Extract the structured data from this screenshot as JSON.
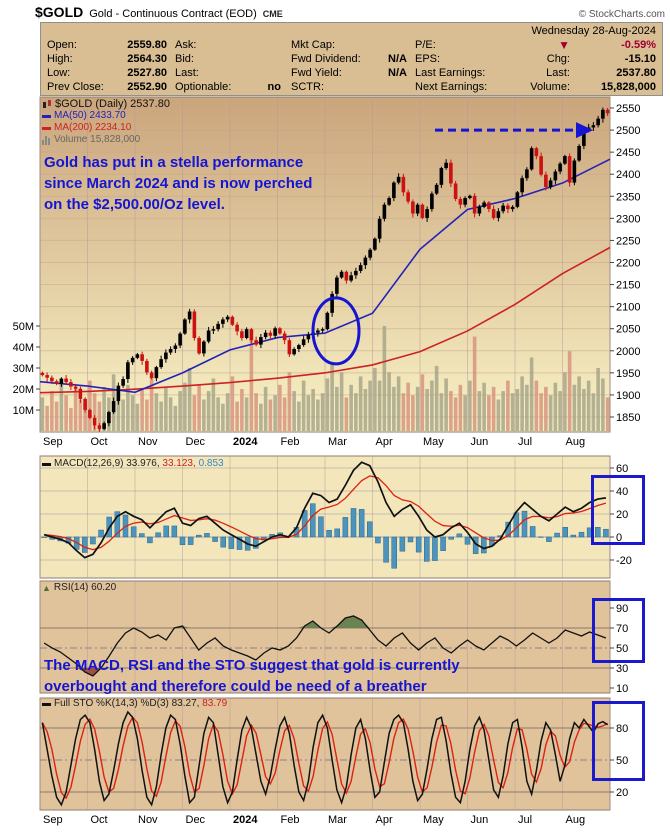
{
  "titlebar": {
    "symbol": "$GOLD",
    "name": "Gold - Continuous Contract (EOD)",
    "exchange": "CME",
    "copyright": "© StockCharts.com"
  },
  "quote": {
    "date": "Wednesday 28-Aug-2024",
    "rows": [
      {
        "c1l": "Open:",
        "c1v": "2559.80",
        "c2l": "Ask:",
        "c2v": "",
        "c3l": "Mkt Cap:",
        "c3v": "",
        "c4l": "P/E:",
        "c4v": "",
        "rl": "",
        "rv": "-0.59%",
        "neg": true,
        "triangle": true
      },
      {
        "c1l": "High:",
        "c1v": "2564.30",
        "c2l": "Bid:",
        "c2v": "",
        "c3l": "Fwd Dividend:",
        "c3v": "N/A",
        "c4l": "EPS:",
        "c4v": "",
        "rl": "Chg:",
        "rv": "-15.10"
      },
      {
        "c1l": "Low:",
        "c1v": "2527.80",
        "c2l": "Last:",
        "c2v": "",
        "c3l": "Fwd Yield:",
        "c3v": "N/A",
        "c4l": "Last Earnings:",
        "c4v": "",
        "rl": "Last:",
        "rv": "2537.80"
      },
      {
        "c1l": "Prev Close:",
        "c1v": "2552.90",
        "c2l": "Optionable:",
        "c2v": "no",
        "c3l": "SCTR:",
        "c3v": "",
        "c4l": "Next Earnings:",
        "c4v": "",
        "rl": "Volume:",
        "rv": "15,828,000"
      }
    ]
  },
  "legend_main": {
    "line1": "$GOLD (Daily) 2537.80",
    "ma50": "MA(50) 2433.70",
    "ma200": "MA(200) 2234.10",
    "volume": "Volume 15,828,000"
  },
  "legend_macd": {
    "name": "MACD(12,26,9)",
    "v1": "33.976,",
    "v2": "33.123,",
    "v3": "0.853"
  },
  "legend_rsi": {
    "text": "RSI(14) 60.20"
  },
  "legend_sto": {
    "name": "Full STO %K(14,3) %D(3)",
    "v1": "83.27,",
    "v2": "83.79"
  },
  "annotation1": {
    "line1": "Gold has put in a stella performance",
    "line2": "since March 2024 and is now perched",
    "line3": "on the $2,500.00/Oz level."
  },
  "annotation2": {
    "line1": "The MACD, RSI and the STO suggest that gold is currently",
    "line2": "overbought and therefore could be need of a breather"
  },
  "months": [
    "Sep",
    "Oct",
    "Nov",
    "Dec",
    "2024",
    "Feb",
    "Mar",
    "Apr",
    "May",
    "Jun",
    "Jul",
    "Aug"
  ],
  "colors": {
    "up": "#000000",
    "down": "#cc1111",
    "ma50": "#2222bb",
    "ma200": "#cc2222",
    "volUp": "#a3a387",
    "volDown": "#d4907c",
    "annotation": "#1515d2",
    "highlight": "#1a1acc",
    "hist": "#4d94bc",
    "histEdge": "#27688e",
    "neg": "#a00030",
    "signal": "#dd2211",
    "gridV": "#b59a96",
    "gridH": "#c4a38e",
    "panelBorder": "#8f7f6f",
    "bgTop": "#cba57c",
    "bgBottom": "#f9f2c6",
    "macdBg": "#f3e6bb",
    "oscBg": "#e0c29b",
    "bandLine": "#8a7a6a",
    "midLine": "#667",
    "greenFill": "#647e4e",
    "redFill": "#9c4a3a"
  },
  "chart_data": [
    {
      "type": "candlestick",
      "title": "$GOLD (Daily)",
      "last": 2537.8,
      "ylim": [
        1816,
        2575
      ],
      "yticks": [
        2550,
        2500,
        2450,
        2400,
        2350,
        2300,
        2250,
        2200,
        2150,
        2100,
        2050,
        2000,
        1950,
        1900,
        1850
      ],
      "volume_ticks": [
        "50M",
        "40M",
        "30M",
        "20M",
        "10M"
      ],
      "close": [
        1945,
        1939,
        1931,
        1925,
        1937,
        1929,
        1919,
        1914,
        1891,
        1866,
        1848,
        1831,
        1823,
        1836,
        1861,
        1886,
        1921,
        1936,
        1974,
        1984,
        1992,
        1977,
        1951,
        1938,
        1963,
        1981,
        1996,
        2004,
        2012,
        2039,
        2071,
        2089,
        2029,
        1994,
        2021,
        2046,
        2049,
        2061,
        2071,
        2077,
        2059,
        2044,
        2029,
        2049,
        2024,
        2014,
        2031,
        2041,
        2034,
        2051,
        2039,
        2024,
        1992,
        2004,
        2013,
        2026,
        2036,
        2041,
        2046,
        2049,
        2086,
        2129,
        2166,
        2179,
        2159,
        2171,
        2181,
        2194,
        2211,
        2229,
        2254,
        2299,
        2331,
        2346,
        2381,
        2394,
        2359,
        2338,
        2311,
        2331,
        2301,
        2321,
        2356,
        2376,
        2414,
        2426,
        2379,
        2344,
        2331,
        2346,
        2351,
        2311,
        2326,
        2336,
        2321,
        2301,
        2316,
        2329,
        2321,
        2326,
        2359,
        2391,
        2411,
        2459,
        2441,
        2399,
        2371,
        2386,
        2406,
        2424,
        2441,
        2381,
        2431,
        2464,
        2499,
        2506,
        2511,
        2526,
        2546,
        2538
      ],
      "volume": [
        16,
        12,
        19,
        14,
        22,
        17,
        11,
        20,
        15,
        13,
        24,
        18,
        14,
        21,
        16,
        27,
        19,
        15,
        22,
        17,
        13,
        20,
        15,
        25,
        18,
        14,
        21,
        16,
        12,
        19,
        23,
        30,
        17,
        22,
        15,
        19,
        25,
        16,
        13,
        18,
        26,
        14,
        20,
        16,
        48,
        18,
        13,
        21,
        15,
        17,
        22,
        16,
        28,
        19,
        14,
        24,
        17,
        20,
        15,
        18,
        25,
        33,
        21,
        28,
        16,
        22,
        18,
        26,
        20,
        24,
        30,
        24,
        50,
        28,
        21,
        26,
        18,
        23,
        17,
        21,
        27,
        20,
        24,
        31,
        18,
        25,
        19,
        16,
        22,
        17,
        24,
        45,
        19,
        23,
        17,
        21,
        15,
        19,
        24,
        18,
        20,
        26,
        22,
        35,
        24,
        18,
        21,
        17,
        23,
        19,
        28,
        38,
        22,
        26,
        20,
        24,
        18,
        30,
        25,
        16
      ],
      "ma50": [
        1930,
        1920,
        1906,
        1950,
        2002,
        2030,
        2040,
        2085,
        2230,
        2320,
        2345,
        2380,
        2434
      ],
      "ma200": [
        1905,
        1908,
        1913,
        1920,
        1928,
        1938,
        1950,
        1968,
        1998,
        2045,
        2105,
        2175,
        2234
      ],
      "arrow": {
        "y_value": 2500,
        "x0": 435,
        "x1": 576
      },
      "ellipse": {
        "cx": 336,
        "cy_value": 2045,
        "rx": 23,
        "ry": 33
      }
    },
    {
      "type": "line",
      "title": "MACD(12,26,9)",
      "yticks": [
        60,
        40,
        20,
        0,
        -20
      ],
      "ylim": [
        -32,
        71
      ],
      "macd": [
        2,
        0,
        -2,
        -5,
        -12,
        -18,
        -15,
        -5,
        8,
        18,
        22,
        18,
        15,
        8,
        15,
        22,
        25,
        12,
        10,
        16,
        18,
        12,
        6,
        2,
        -2,
        -6,
        -8,
        -4,
        0,
        2,
        0,
        8,
        25,
        38,
        36,
        30,
        33,
        45,
        58,
        65,
        62,
        48,
        30,
        18,
        24,
        28,
        18,
        6,
        0,
        2,
        8,
        12,
        4,
        -6,
        -10,
        -8,
        -2,
        10,
        22,
        30,
        24,
        18,
        14,
        20,
        26,
        22,
        25,
        30,
        33,
        34
      ]
    },
    {
      "type": "line",
      "title": "RSI(14)",
      "yticks": [
        90,
        70,
        50,
        30,
        10
      ],
      "ylim": [
        0,
        100
      ],
      "overbought": 70,
      "mid": 50,
      "oversold": 30,
      "values": [
        55,
        50,
        46,
        40,
        34,
        26,
        22,
        30,
        42,
        55,
        65,
        70,
        66,
        60,
        63,
        58,
        70,
        72,
        60,
        48,
        55,
        60,
        52,
        48,
        45,
        42,
        38,
        45,
        50,
        48,
        52,
        60,
        72,
        77,
        70,
        65,
        72,
        80,
        82,
        78,
        68,
        58,
        52,
        60,
        65,
        55,
        48,
        55,
        60,
        50,
        45,
        52,
        58,
        52,
        48,
        55,
        62,
        58,
        52,
        58,
        65,
        60,
        55,
        60,
        68,
        65,
        62,
        66,
        63,
        60
      ]
    },
    {
      "type": "line",
      "title": "Full STO %K(14,3) %D(3)",
      "yticks": [
        80,
        50,
        20
      ],
      "ylim": [
        0,
        100
      ],
      "overbought": 80,
      "mid": 50,
      "oversold": 20,
      "k": [
        85,
        60,
        35,
        15,
        8,
        20,
        45,
        70,
        88,
        92,
        85,
        60,
        30,
        12,
        18,
        40,
        65,
        85,
        95,
        90,
        70,
        40,
        15,
        8,
        25,
        55,
        80,
        92,
        88,
        65,
        35,
        10,
        15,
        45,
        75,
        90,
        85,
        55,
        25,
        10,
        20,
        50,
        78,
        90,
        80,
        55,
        30,
        18,
        35,
        60,
        82,
        90,
        75,
        45,
        20,
        12,
        30,
        62,
        85,
        92,
        80,
        50,
        22,
        10,
        25,
        55,
        80,
        88,
        70,
        40,
        15,
        20,
        48,
        75,
        88,
        92,
        85,
        60,
        30,
        12,
        18,
        42,
        70,
        88,
        90,
        68,
        38,
        15,
        10,
        30,
        60,
        82,
        90,
        78,
        50,
        22,
        15,
        35,
        65,
        85,
        88,
        62,
        30,
        18,
        40,
        68,
        85,
        78,
        55,
        30,
        45,
        70,
        85,
        80,
        88,
        82,
        76,
        84,
        86,
        83
      ]
    }
  ]
}
